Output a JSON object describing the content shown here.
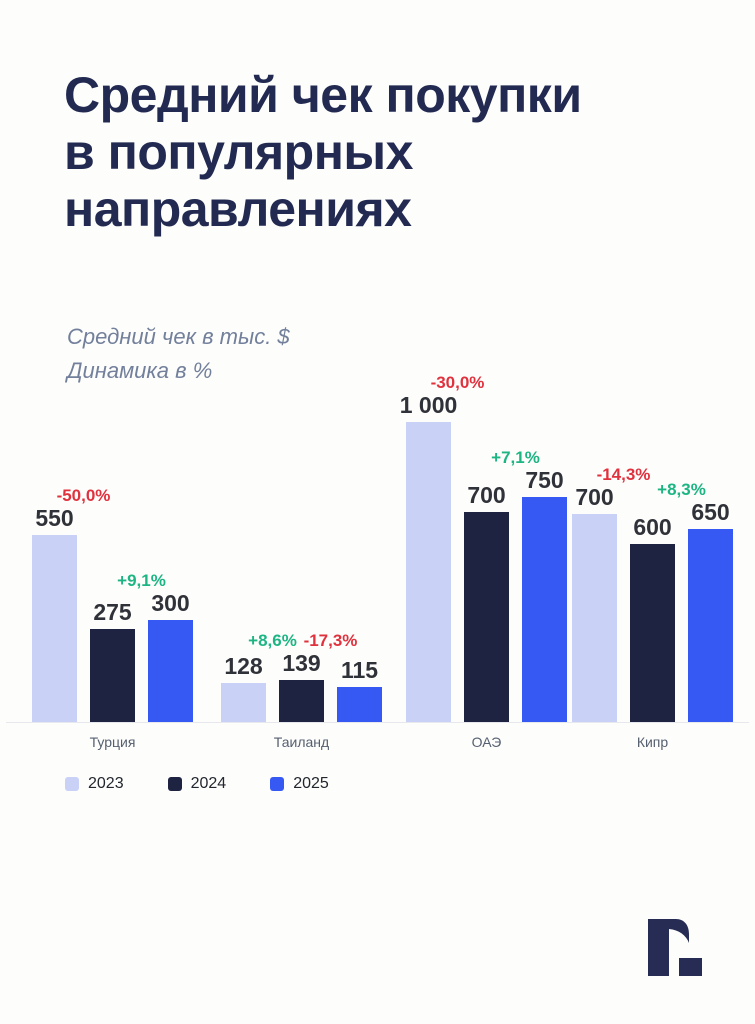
{
  "header": {
    "title_lines": [
      "Средний чек покупки",
      "в популярных",
      "направлениях"
    ],
    "subtitle_lines": [
      "Средний чек в тыс. $",
      "Динамика в %"
    ]
  },
  "colors": {
    "background": "#fdfdfb",
    "title": "#222a52",
    "subtitle": "#73809c",
    "bar_2023": "#c9d1f6",
    "bar_2024": "#1e2342",
    "bar_2025": "#3659f4",
    "positive": "#1db584",
    "negative": "#e0323e",
    "value_label": "#303239",
    "category_label": "#566070",
    "legend_label": "#22262e",
    "baseline": "#e7e8ee",
    "logo": "#272c54"
  },
  "chart_data": {
    "type": "bar",
    "title": "Средний чек покупки в популярных направлениях",
    "subtitle_unit": "Средний чек в тыс. $",
    "subtitle_dynamics": "Динамика в %",
    "unit": "тыс. $",
    "grid": false,
    "legend_position": "bottom-left",
    "categories": [
      "Турция",
      "Таиланд",
      "ОАЭ",
      "Кипр"
    ],
    "series_names": [
      "2023",
      "2024",
      "2025"
    ],
    "series": [
      {
        "name": "2023",
        "values": [
          550,
          128,
          1000,
          700
        ]
      },
      {
        "name": "2024",
        "values": [
          275,
          139,
          700,
          600
        ]
      },
      {
        "name": "2025",
        "values": [
          300,
          115,
          750,
          650
        ]
      }
    ],
    "groups": [
      {
        "category": "Турция",
        "values": [
          550,
          275,
          300
        ],
        "labels": [
          "550",
          "275",
          "300"
        ],
        "changes": [
          "-50,0%",
          "+9,1%"
        ]
      },
      {
        "category": "Таиланд",
        "values": [
          128,
          139,
          115
        ],
        "labels": [
          "128",
          "139",
          "115"
        ],
        "changes": [
          "+8,6%",
          "-17,3%"
        ]
      },
      {
        "category": "ОАЭ",
        "values": [
          1000,
          700,
          750
        ],
        "labels": [
          "1 000",
          "700",
          "750"
        ],
        "changes": [
          "-30,0%",
          "+7,1%"
        ]
      },
      {
        "category": "Кипр",
        "values": [
          700,
          600,
          650
        ],
        "labels": [
          "700",
          "600",
          "650"
        ],
        "changes": [
          "-14,3%",
          "+8,3%"
        ]
      }
    ],
    "legend": [
      "2023",
      "2024",
      "2025"
    ]
  },
  "logo": {
    "icon": "r-dot-brand-mark",
    "glyph": "r."
  }
}
